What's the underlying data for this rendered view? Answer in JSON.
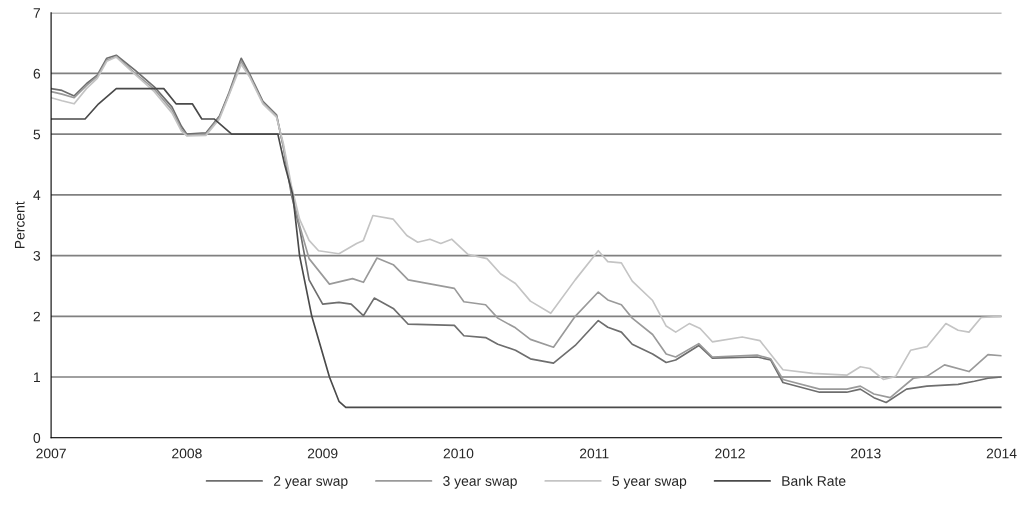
{
  "chart_data": {
    "type": "line",
    "ylabel": "Percent",
    "xlim": [
      2007,
      2014
    ],
    "ylim": [
      0,
      7
    ],
    "xticks": [
      2007,
      2008,
      2009,
      2010,
      2011,
      2012,
      2013,
      2014
    ],
    "yticks": [
      0,
      1,
      2,
      3,
      4,
      5,
      6,
      7
    ],
    "grid": "y",
    "legend": "bottom",
    "line_style": "solid",
    "marker": "none",
    "series": [
      {
        "name": "2 year swap",
        "color": "#6e6e6e",
        "x": [
          2007.0,
          2007.08,
          2007.17,
          2007.26,
          2007.34,
          2007.41,
          2007.48,
          2007.62,
          2007.76,
          2007.89,
          2007.96,
          2008.0,
          2008.14,
          2008.24,
          2008.31,
          2008.4,
          2008.46,
          2008.56,
          2008.66,
          2008.71,
          2008.77,
          2008.83,
          2008.9,
          2009.0,
          2009.12,
          2009.21,
          2009.3,
          2009.38,
          2009.52,
          2009.63,
          2009.97,
          2010.04,
          2010.2,
          2010.29,
          2010.42,
          2010.53,
          2010.7,
          2010.86,
          2011.03,
          2011.1,
          2011.2,
          2011.28,
          2011.43,
          2011.53,
          2011.6,
          2011.77,
          2011.87,
          2012.2,
          2012.3,
          2012.39,
          2012.66,
          2012.86,
          2012.96,
          2013.06,
          2013.15,
          2013.3,
          2013.45,
          2013.68,
          2013.8,
          2013.9,
          2014.0
        ],
        "values": [
          5.75,
          5.72,
          5.63,
          5.83,
          5.97,
          6.25,
          6.3,
          6.05,
          5.78,
          5.45,
          5.13,
          5.0,
          5.02,
          5.3,
          5.68,
          6.25,
          6.0,
          5.54,
          5.32,
          4.8,
          4.0,
          3.45,
          2.6,
          2.2,
          2.23,
          2.2,
          2.01,
          2.3,
          2.13,
          1.87,
          1.85,
          1.68,
          1.65,
          1.54,
          1.44,
          1.3,
          1.23,
          1.52,
          1.93,
          1.82,
          1.74,
          1.54,
          1.38,
          1.24,
          1.28,
          1.52,
          1.31,
          1.33,
          1.28,
          0.91,
          0.75,
          0.75,
          0.8,
          0.66,
          0.58,
          0.8,
          0.85,
          0.88,
          0.93,
          0.98,
          1.0
        ]
      },
      {
        "name": "3 year swap",
        "color": "#9a9a9a",
        "x": [
          2007.0,
          2007.08,
          2007.17,
          2007.26,
          2007.34,
          2007.41,
          2007.48,
          2007.62,
          2007.76,
          2007.89,
          2007.96,
          2008.0,
          2008.14,
          2008.24,
          2008.31,
          2008.4,
          2008.46,
          2008.56,
          2008.66,
          2008.71,
          2008.77,
          2008.83,
          2008.9,
          2009.05,
          2009.22,
          2009.3,
          2009.4,
          2009.52,
          2009.63,
          2009.97,
          2010.04,
          2010.2,
          2010.29,
          2010.42,
          2010.53,
          2010.7,
          2010.86,
          2011.03,
          2011.1,
          2011.2,
          2011.28,
          2011.43,
          2011.53,
          2011.6,
          2011.77,
          2011.87,
          2012.2,
          2012.3,
          2012.39,
          2012.66,
          2012.86,
          2012.96,
          2013.06,
          2013.18,
          2013.35,
          2013.45,
          2013.58,
          2013.76,
          2013.9,
          2014.0
        ],
        "values": [
          5.7,
          5.66,
          5.6,
          5.8,
          5.95,
          6.22,
          6.28,
          6.0,
          5.74,
          5.4,
          5.08,
          4.98,
          5.0,
          5.28,
          5.66,
          6.2,
          5.97,
          5.52,
          5.3,
          4.8,
          4.05,
          3.5,
          2.95,
          2.53,
          2.62,
          2.56,
          2.96,
          2.85,
          2.6,
          2.46,
          2.24,
          2.19,
          1.97,
          1.81,
          1.62,
          1.49,
          2.0,
          2.4,
          2.27,
          2.19,
          1.97,
          1.7,
          1.38,
          1.33,
          1.55,
          1.33,
          1.36,
          1.3,
          0.96,
          0.8,
          0.8,
          0.85,
          0.72,
          0.66,
          0.98,
          1.01,
          1.2,
          1.09,
          1.37,
          1.35
        ]
      },
      {
        "name": "5 year swap",
        "color": "#c4c4c4",
        "x": [
          2007.0,
          2007.08,
          2007.17,
          2007.26,
          2007.34,
          2007.41,
          2007.48,
          2007.62,
          2007.76,
          2007.89,
          2007.96,
          2008.0,
          2008.14,
          2008.24,
          2008.31,
          2008.4,
          2008.46,
          2008.56,
          2008.66,
          2008.71,
          2008.77,
          2008.83,
          2008.9,
          2008.97,
          2009.12,
          2009.25,
          2009.3,
          2009.37,
          2009.52,
          2009.62,
          2009.7,
          2009.79,
          2009.87,
          2009.95,
          2010.07,
          2010.21,
          2010.31,
          2010.42,
          2010.53,
          2010.68,
          2010.86,
          2011.03,
          2011.1,
          2011.2,
          2011.28,
          2011.43,
          2011.53,
          2011.6,
          2011.7,
          2011.78,
          2011.87,
          2012.09,
          2012.22,
          2012.39,
          2012.61,
          2012.86,
          2012.96,
          2013.03,
          2013.13,
          2013.22,
          2013.33,
          2013.45,
          2013.59,
          2013.68,
          2013.76,
          2013.85,
          2014.0
        ],
        "values": [
          5.6,
          5.55,
          5.5,
          5.75,
          5.92,
          6.2,
          6.27,
          5.98,
          5.7,
          5.35,
          5.05,
          4.97,
          4.98,
          5.25,
          5.64,
          6.15,
          5.95,
          5.5,
          5.28,
          4.85,
          4.15,
          3.6,
          3.25,
          3.08,
          3.03,
          3.2,
          3.25,
          3.66,
          3.6,
          3.33,
          3.22,
          3.27,
          3.2,
          3.27,
          3.02,
          2.95,
          2.7,
          2.54,
          2.25,
          2.05,
          2.6,
          3.08,
          2.9,
          2.88,
          2.58,
          2.26,
          1.84,
          1.74,
          1.88,
          1.8,
          1.58,
          1.66,
          1.6,
          1.12,
          1.06,
          1.03,
          1.17,
          1.14,
          0.96,
          1.01,
          1.44,
          1.5,
          1.88,
          1.77,
          1.74,
          1.98,
          2.0
        ]
      },
      {
        "name": "Bank Rate",
        "color": "#4a4a4a",
        "x": [
          2007.0,
          2007.25,
          2007.35,
          2007.48,
          2007.83,
          2007.92,
          2008.04,
          2008.11,
          2008.2,
          2008.33,
          2008.67,
          2008.72,
          2008.78,
          2008.83,
          2008.92,
          2009.05,
          2009.12,
          2009.17,
          2014.0
        ],
        "values": [
          5.25,
          5.25,
          5.5,
          5.75,
          5.75,
          5.5,
          5.5,
          5.25,
          5.25,
          5.0,
          5.0,
          4.5,
          4.0,
          3.0,
          2.0,
          1.0,
          0.6,
          0.5,
          0.5
        ]
      }
    ]
  }
}
